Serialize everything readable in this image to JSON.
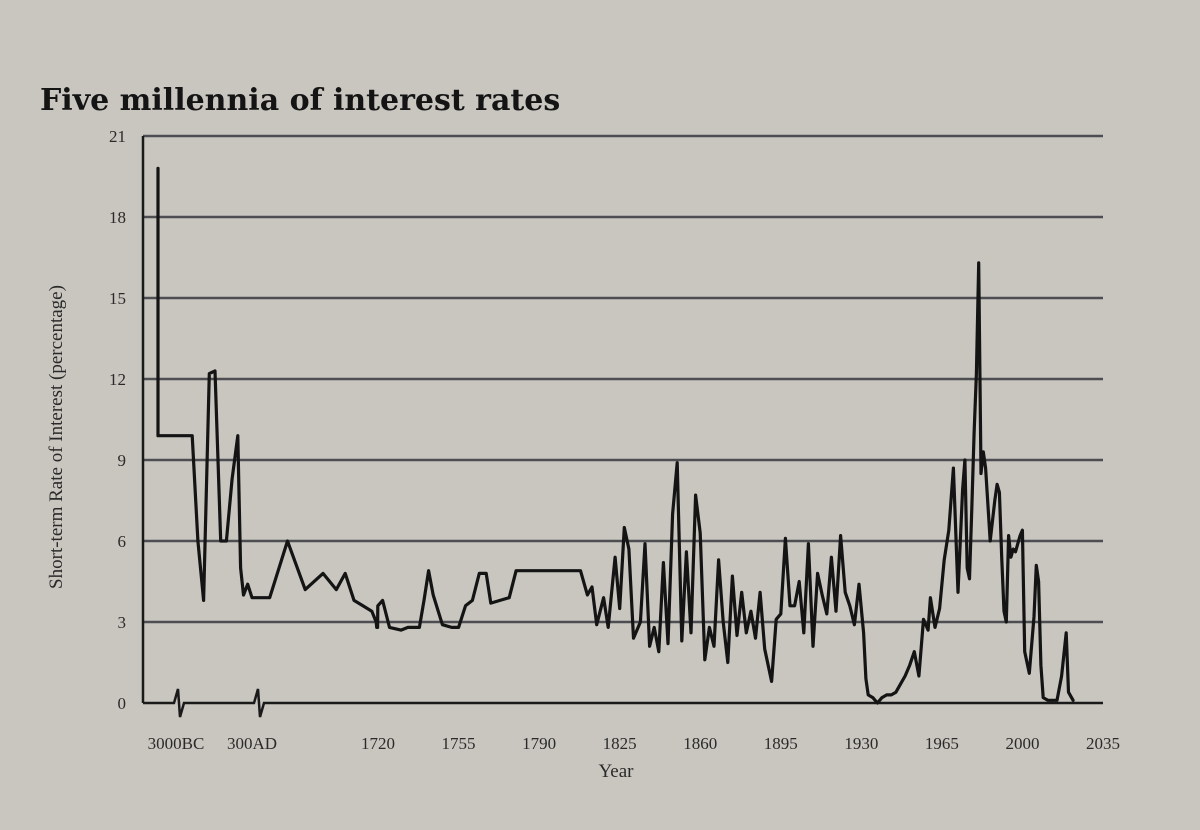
{
  "chart_data": {
    "type": "line",
    "title": "Five millennia of interest rates",
    "xlabel": "Year",
    "ylabel": "Short-term Rate of Interest (percentage)",
    "ylim": [
      0,
      21
    ],
    "yticks": [
      "0",
      "3",
      "6",
      "9",
      "12",
      "15",
      "18",
      "21"
    ],
    "xticks": [
      "3000BC",
      "300AD",
      "1720",
      "1755",
      "1790",
      "1825",
      "1860",
      "1895",
      "1930",
      "1965",
      "2000",
      "2035"
    ],
    "x_axis_note": "axis broken (zigzag breaks) between 3000BC and 300AD and between 300AD and 1720",
    "grid": "horizontal",
    "series": [
      {
        "points": [
          [
            "3000BC",
            19.8
          ],
          [
            "3000BC",
            9.9
          ],
          [
            "2400BC",
            9.9
          ],
          [
            "1800BC",
            9.9
          ],
          [
            "1600BC",
            6.0
          ],
          [
            "1400BC",
            3.8
          ],
          [
            "1200BC",
            12.2
          ],
          [
            "1000BC",
            12.3
          ],
          [
            "800BC",
            6.0
          ],
          [
            "600BC",
            6.0
          ],
          [
            "400BC",
            8.3
          ],
          [
            "200BC",
            9.9
          ],
          [
            "100BC",
            5.0
          ],
          [
            "1AD",
            4.0
          ],
          [
            "150AD",
            4.4
          ],
          [
            "300AD",
            3.9
          ],
          [
            "500AD",
            3.9
          ],
          [
            "700AD",
            6.0
          ],
          [
            "900AD",
            4.2
          ],
          [
            "1100AD",
            4.8
          ],
          [
            "1250AD",
            4.2
          ],
          [
            "1350AD",
            4.8
          ],
          [
            "1450AD",
            3.8
          ],
          [
            "1550AD",
            3.6
          ],
          [
            "1650AD",
            3.4
          ],
          [
            1700,
            3.0
          ],
          [
            1705,
            2.8
          ],
          [
            1710,
            2.8
          ],
          [
            1715,
            2.8
          ],
          [
            1718,
            3.6
          ],
          [
            1722,
            3.8
          ],
          [
            1725,
            2.8
          ],
          [
            1730,
            2.7
          ],
          [
            1733,
            2.8
          ],
          [
            1738,
            2.8
          ],
          [
            1740,
            3.8
          ],
          [
            1742,
            4.9
          ],
          [
            1744,
            4.0
          ],
          [
            1748,
            2.9
          ],
          [
            1752,
            2.8
          ],
          [
            1755,
            2.8
          ],
          [
            1758,
            3.6
          ],
          [
            1761,
            3.8
          ],
          [
            1764,
            4.8
          ],
          [
            1767,
            4.8
          ],
          [
            1769,
            3.7
          ],
          [
            1773,
            3.8
          ],
          [
            1777,
            3.9
          ],
          [
            1780,
            4.9
          ],
          [
            1790,
            4.9
          ],
          [
            1800,
            4.9
          ],
          [
            1808,
            4.9
          ],
          [
            1811,
            4.0
          ],
          [
            1813,
            4.3
          ],
          [
            1815,
            2.9
          ],
          [
            1818,
            3.9
          ],
          [
            1820,
            2.8
          ],
          [
            1823,
            5.4
          ],
          [
            1825,
            3.5
          ],
          [
            1827,
            6.5
          ],
          [
            1829,
            5.7
          ],
          [
            1831,
            2.4
          ],
          [
            1834,
            3.0
          ],
          [
            1836,
            5.9
          ],
          [
            1838,
            2.1
          ],
          [
            1840,
            2.8
          ],
          [
            1842,
            1.9
          ],
          [
            1844,
            5.2
          ],
          [
            1846,
            2.2
          ],
          [
            1848,
            7.0
          ],
          [
            1850,
            8.9
          ],
          [
            1852,
            2.3
          ],
          [
            1854,
            5.6
          ],
          [
            1856,
            2.6
          ],
          [
            1858,
            7.7
          ],
          [
            1860,
            6.3
          ],
          [
            1862,
            1.6
          ],
          [
            1864,
            2.8
          ],
          [
            1866,
            2.1
          ],
          [
            1868,
            5.3
          ],
          [
            1870,
            3.0
          ],
          [
            1872,
            1.5
          ],
          [
            1874,
            4.7
          ],
          [
            1876,
            2.5
          ],
          [
            1878,
            4.1
          ],
          [
            1880,
            2.6
          ],
          [
            1882,
            3.4
          ],
          [
            1884,
            2.4
          ],
          [
            1886,
            4.1
          ],
          [
            1888,
            2.0
          ],
          [
            1891,
            0.8
          ],
          [
            1893,
            3.1
          ],
          [
            1895,
            3.3
          ],
          [
            1897,
            6.1
          ],
          [
            1899,
            3.6
          ],
          [
            1901,
            3.6
          ],
          [
            1903,
            4.5
          ],
          [
            1905,
            2.6
          ],
          [
            1907,
            5.9
          ],
          [
            1909,
            2.1
          ],
          [
            1911,
            4.8
          ],
          [
            1913,
            4.0
          ],
          [
            1915,
            3.3
          ],
          [
            1917,
            5.4
          ],
          [
            1919,
            3.4
          ],
          [
            1921,
            6.2
          ],
          [
            1923,
            4.1
          ],
          [
            1925,
            3.6
          ],
          [
            1927,
            2.9
          ],
          [
            1929,
            4.4
          ],
          [
            1931,
            2.6
          ],
          [
            1932,
            0.9
          ],
          [
            1933,
            0.3
          ],
          [
            1935,
            0.2
          ],
          [
            1937,
            0.0
          ],
          [
            1939,
            0.2
          ],
          [
            1941,
            0.3
          ],
          [
            1943,
            0.3
          ],
          [
            1945,
            0.4
          ],
          [
            1947,
            0.7
          ],
          [
            1949,
            1.0
          ],
          [
            1951,
            1.4
          ],
          [
            1953,
            1.9
          ],
          [
            1955,
            1.0
          ],
          [
            1957,
            3.1
          ],
          [
            1959,
            2.7
          ],
          [
            1960,
            3.9
          ],
          [
            1962,
            2.8
          ],
          [
            1964,
            3.5
          ],
          [
            1966,
            5.3
          ],
          [
            1968,
            6.4
          ],
          [
            1970,
            8.7
          ],
          [
            1972,
            4.1
          ],
          [
            1974,
            7.9
          ],
          [
            1975,
            9.0
          ],
          [
            1976,
            5.0
          ],
          [
            1977,
            4.6
          ],
          [
            1978,
            7.2
          ],
          [
            1979,
            10.0
          ],
          [
            1980,
            12.2
          ],
          [
            1981,
            16.3
          ],
          [
            1982,
            8.5
          ],
          [
            1983,
            9.3
          ],
          [
            1984,
            8.7
          ],
          [
            1986,
            6.0
          ],
          [
            1988,
            7.5
          ],
          [
            1989,
            8.1
          ],
          [
            1990,
            7.8
          ],
          [
            1991,
            5.4
          ],
          [
            1992,
            3.4
          ],
          [
            1993,
            3.0
          ],
          [
            1994,
            6.2
          ],
          [
            1995,
            5.4
          ],
          [
            1996,
            5.7
          ],
          [
            1997,
            5.6
          ],
          [
            1999,
            6.2
          ],
          [
            2000,
            6.4
          ],
          [
            2001,
            1.9
          ],
          [
            2003,
            1.1
          ],
          [
            2005,
            3.2
          ],
          [
            2006,
            5.1
          ],
          [
            2007,
            4.5
          ],
          [
            2008,
            1.4
          ],
          [
            2009,
            0.2
          ],
          [
            2011,
            0.1
          ],
          [
            2015,
            0.1
          ],
          [
            2017,
            1.0
          ],
          [
            2019,
            2.6
          ],
          [
            2020,
            0.4
          ],
          [
            2022,
            0.1
          ]
        ]
      }
    ]
  }
}
